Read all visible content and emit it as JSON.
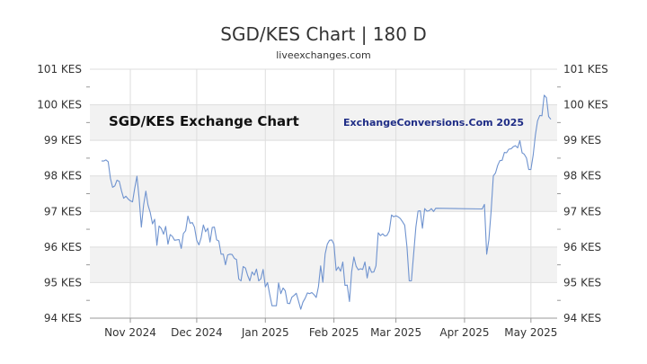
{
  "title": "SGD/KES Chart | 180 D",
  "subtitle": "liveexchanges.com",
  "watermark_left": "SGD/KES Exchange Chart",
  "watermark_right": "ExchangeConversions.Com 2025",
  "colors": {
    "line": "#6f93cf",
    "band": "#f2f2f2",
    "grid": "#dddddd",
    "text": "#333333"
  },
  "chart_data": {
    "type": "line",
    "title": "SGD/KES Chart | 180 D",
    "ylim": [
      94,
      101
    ],
    "y_ticks": [
      "94 KES",
      "95 KES",
      "96 KES",
      "97 KES",
      "98 KES",
      "99 KES",
      "100 KES",
      "101 KES"
    ],
    "x_ticks": [
      "Nov 2024",
      "Dec 2024",
      "Jan 2025",
      "Feb 2025",
      "Mar 2025",
      "Apr 2025",
      "May 2025"
    ],
    "grid": true,
    "series": [
      {
        "x": [
          "2024-10-19",
          "2024-10-20",
          "2024-10-21",
          "2024-10-22",
          "2024-10-23",
          "2024-10-24",
          "2024-10-25",
          "2024-10-26",
          "2024-10-27",
          "2024-10-28",
          "2024-10-29",
          "2024-10-30",
          "2024-10-31",
          "2024-11-01",
          "2024-11-02",
          "2024-11-03",
          "2024-11-04",
          "2024-11-05",
          "2024-11-06",
          "2024-11-07",
          "2024-11-08",
          "2024-11-09",
          "2024-11-10",
          "2024-11-11",
          "2024-11-12",
          "2024-11-13",
          "2024-11-14",
          "2024-11-15",
          "2024-11-16",
          "2024-11-17",
          "2024-11-18",
          "2024-11-19",
          "2024-11-20",
          "2024-11-21",
          "2024-11-22",
          "2024-11-23",
          "2024-11-24",
          "2024-11-25",
          "2024-11-26",
          "2024-11-27",
          "2024-11-28",
          "2024-11-29",
          "2024-11-30",
          "2024-12-01",
          "2024-12-02",
          "2024-12-03",
          "2024-12-04",
          "2024-12-05",
          "2024-12-06",
          "2024-12-07",
          "2024-12-08",
          "2024-12-09",
          "2024-12-10",
          "2024-12-11",
          "2024-12-12",
          "2024-12-13",
          "2024-12-14",
          "2024-12-15",
          "2024-12-16",
          "2024-12-17",
          "2024-12-18",
          "2024-12-19",
          "2024-12-20",
          "2024-12-21",
          "2024-12-22",
          "2024-12-23",
          "2024-12-24",
          "2024-12-25",
          "2024-12-26",
          "2024-12-27",
          "2024-12-28",
          "2024-12-29",
          "2024-12-30",
          "2024-12-31",
          "2025-01-01",
          "2025-01-02",
          "2025-01-03",
          "2025-01-04",
          "2025-01-05",
          "2025-01-06",
          "2025-01-07",
          "2025-01-08",
          "2025-01-09",
          "2025-01-10",
          "2025-01-11",
          "2025-01-12",
          "2025-01-13",
          "2025-01-14",
          "2025-01-15",
          "2025-01-16",
          "2025-01-17",
          "2025-01-18",
          "2025-01-19",
          "2025-01-20",
          "2025-01-21",
          "2025-01-22",
          "2025-01-23",
          "2025-01-24",
          "2025-01-25",
          "2025-01-26",
          "2025-01-27",
          "2025-01-28",
          "2025-01-29",
          "2025-01-30",
          "2025-01-31",
          "2025-02-01",
          "2025-02-02",
          "2025-02-03",
          "2025-02-04",
          "2025-02-05",
          "2025-02-06",
          "2025-02-07",
          "2025-02-08",
          "2025-02-09",
          "2025-02-10",
          "2025-02-11",
          "2025-02-12",
          "2025-02-13",
          "2025-02-14",
          "2025-02-15",
          "2025-02-16",
          "2025-02-17",
          "2025-02-18",
          "2025-02-19",
          "2025-02-20",
          "2025-02-21",
          "2025-02-22",
          "2025-02-23",
          "2025-02-24",
          "2025-02-25",
          "2025-02-26",
          "2025-02-27",
          "2025-02-28",
          "2025-03-01",
          "2025-03-02",
          "2025-03-03",
          "2025-03-04",
          "2025-03-05",
          "2025-03-06",
          "2025-03-07",
          "2025-03-08",
          "2025-03-09",
          "2025-03-10",
          "2025-03-11",
          "2025-03-12",
          "2025-03-13",
          "2025-03-14",
          "2025-03-15",
          "2025-03-16",
          "2025-03-17",
          "2025-03-18",
          "2025-03-19",
          "2025-04-09",
          "2025-04-10",
          "2025-04-11",
          "2025-04-12",
          "2025-04-13",
          "2025-04-14",
          "2025-04-15",
          "2025-04-16",
          "2025-04-17",
          "2025-04-18",
          "2025-04-19",
          "2025-04-20",
          "2025-04-21",
          "2025-04-22",
          "2025-04-23",
          "2025-04-24",
          "2025-04-25",
          "2025-04-26",
          "2025-04-27",
          "2025-04-28",
          "2025-04-29",
          "2025-04-30",
          "2025-05-01",
          "2025-05-02",
          "2025-05-03",
          "2025-05-04",
          "2025-05-05",
          "2025-05-06",
          "2025-05-07",
          "2025-05-08",
          "2025-05-09",
          "2025-05-10"
        ],
        "values": [
          98.42,
          98.42,
          98.45,
          98.4,
          97.93,
          97.68,
          97.72,
          97.88,
          97.85,
          97.58,
          97.37,
          97.43,
          97.35,
          97.3,
          97.27,
          97.65,
          97.99,
          97.35,
          96.56,
          97.18,
          97.57,
          97.18,
          96.97,
          96.65,
          96.78,
          96.05,
          96.59,
          96.52,
          96.36,
          96.58,
          96.08,
          96.35,
          96.3,
          96.19,
          96.2,
          96.21,
          95.96,
          96.38,
          96.46,
          96.87,
          96.67,
          96.69,
          96.56,
          96.19,
          96.06,
          96.26,
          96.62,
          96.43,
          96.53,
          96.14,
          96.55,
          96.56,
          96.2,
          96.17,
          95.8,
          95.8,
          95.5,
          95.78,
          95.8,
          95.79,
          95.68,
          95.65,
          95.1,
          95.05,
          95.45,
          95.41,
          95.2,
          95.05,
          95.3,
          95.21,
          95.38,
          95.05,
          95.11,
          95.37,
          94.88,
          95.0,
          94.66,
          94.35,
          94.35,
          94.35,
          94.99,
          94.69,
          94.85,
          94.77,
          94.42,
          94.41,
          94.59,
          94.64,
          94.7,
          94.48,
          94.25,
          94.45,
          94.56,
          94.71,
          94.69,
          94.72,
          94.66,
          94.58,
          94.89,
          95.47,
          95.01,
          95.8,
          96.08,
          96.19,
          96.2,
          96.08,
          95.34,
          95.44,
          95.32,
          95.58,
          94.92,
          94.93,
          94.47,
          95.3,
          95.72,
          95.46,
          95.36,
          95.39,
          95.37,
          95.58,
          95.13,
          95.45,
          95.29,
          95.3,
          95.47,
          96.4,
          96.32,
          96.37,
          96.31,
          96.33,
          96.45,
          96.9,
          96.85,
          96.88,
          96.85,
          96.8,
          96.71,
          96.61,
          96.0,
          95.05,
          95.05,
          95.8,
          96.56,
          97.01,
          97.02,
          96.53,
          97.08,
          97.01,
          97.02,
          97.08,
          97.0,
          97.09,
          97.07,
          97.2,
          95.8,
          96.2,
          97.0,
          98.0,
          98.08,
          98.3,
          98.43,
          98.44,
          98.66,
          98.65,
          98.75,
          98.76,
          98.82,
          98.85,
          98.79,
          98.99,
          98.65,
          98.61,
          98.5,
          98.18,
          98.18,
          98.58,
          99.15,
          99.55,
          99.7,
          99.69,
          100.27,
          100.2,
          99.67,
          99.59
        ]
      }
    ]
  }
}
